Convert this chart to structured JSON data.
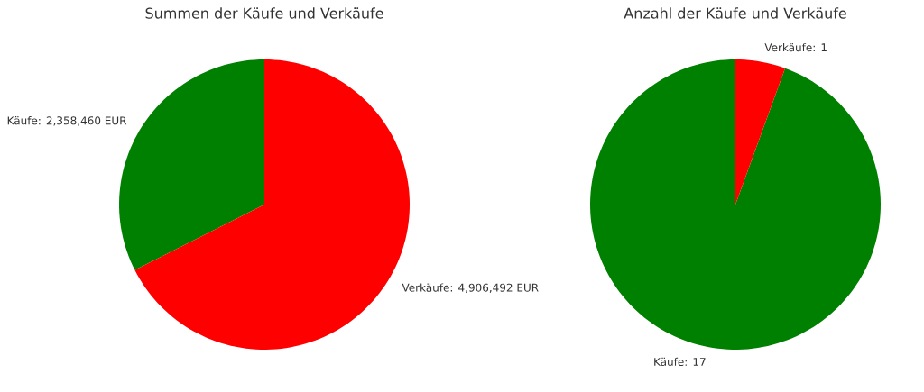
{
  "chart_data": [
    {
      "type": "pie",
      "title": "Summen der Käufe und Verkäufe",
      "categories": [
        "Käufe",
        "Verkäufe"
      ],
      "values": [
        2358460,
        4906492
      ],
      "colors": [
        "#008000",
        "#ff0000"
      ],
      "value_labels": [
        ": 2,358,460 EUR",
        ": 4,906,492 EUR"
      ]
    },
    {
      "type": "pie",
      "title": "Anzahl der Käufe und Verkäufe",
      "categories": [
        "Käufe",
        "Verkäufe"
      ],
      "values": [
        17,
        1
      ],
      "colors": [
        "#008000",
        "#ff0000"
      ],
      "value_labels": [
        ": 17",
        ": 1"
      ]
    }
  ]
}
